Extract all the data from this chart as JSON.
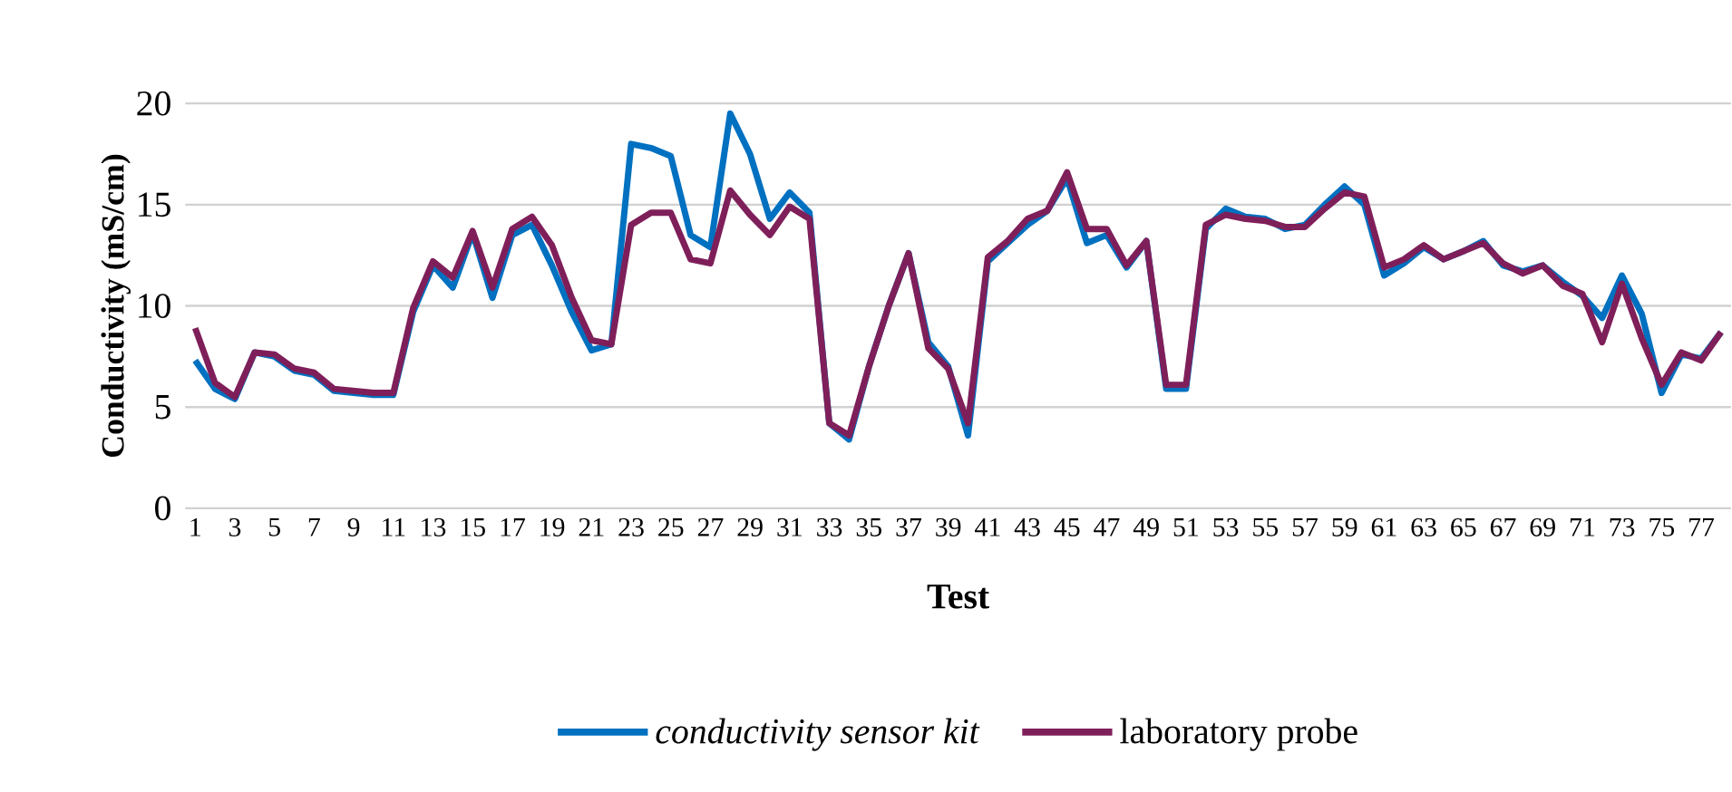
{
  "chart_data": {
    "type": "line",
    "xlabel": "Test",
    "ylabel": "Conductivity (mS/cm)",
    "categories": [
      "1",
      null,
      "3",
      null,
      "5",
      null,
      "7",
      null,
      "9",
      null,
      "11",
      null,
      "13",
      null,
      "15",
      null,
      "17",
      null,
      "19",
      null,
      "21",
      null,
      "23",
      null,
      "25",
      null,
      "27",
      null,
      "29",
      null,
      "31",
      null,
      "33",
      null,
      "35",
      null,
      "37",
      null,
      "39",
      null,
      "41",
      null,
      "43",
      null,
      "45",
      null,
      "47",
      null,
      "49",
      null,
      "51",
      null,
      "53",
      null,
      "55",
      null,
      "57",
      null,
      "59",
      null,
      "61",
      null,
      "63",
      null,
      "65",
      null,
      "67",
      null,
      "69",
      null,
      "71",
      null,
      "73",
      null,
      "75",
      null,
      "77",
      null
    ],
    "series": [
      {
        "name": "conductivity sensor kit",
        "color": "#0070c0",
        "values": [
          7.3,
          5.9,
          5.4,
          7.7,
          7.5,
          6.8,
          6.6,
          5.8,
          5.7,
          5.6,
          5.6,
          9.7,
          12.0,
          10.9,
          13.6,
          10.4,
          13.5,
          14.0,
          12.0,
          9.7,
          7.8,
          8.1,
          18.0,
          17.8,
          17.4,
          13.5,
          12.9,
          19.5,
          17.5,
          14.3,
          15.6,
          14.6,
          4.2,
          3.4,
          7.0,
          10.0,
          12.6,
          8.2,
          7.0,
          3.6,
          12.2,
          13.1,
          14.0,
          14.7,
          16.3,
          13.1,
          13.5,
          11.9,
          13.2,
          5.9,
          5.9,
          13.8,
          14.8,
          14.4,
          14.3,
          13.8,
          14.0,
          15.0,
          15.9,
          15.0,
          11.5,
          12.1,
          12.9,
          12.3,
          12.7,
          13.2,
          12.0,
          11.7,
          12.0,
          11.2,
          10.5,
          9.4,
          11.5,
          9.6,
          5.7,
          7.6,
          7.4,
          8.7
        ]
      },
      {
        "name": "laboratory probe",
        "color": "#7f1f5a",
        "values": [
          8.9,
          6.2,
          5.5,
          7.7,
          7.6,
          6.9,
          6.7,
          5.9,
          5.8,
          5.7,
          5.7,
          9.9,
          12.2,
          11.4,
          13.7,
          10.9,
          13.8,
          14.4,
          13.0,
          10.4,
          8.3,
          8.1,
          14.0,
          14.6,
          14.6,
          12.3,
          12.1,
          15.7,
          14.5,
          13.5,
          14.9,
          14.3,
          4.2,
          3.6,
          7.0,
          10.0,
          12.6,
          7.9,
          6.9,
          4.2,
          12.4,
          13.2,
          14.3,
          14.7,
          16.6,
          13.8,
          13.8,
          12.0,
          13.2,
          6.1,
          6.1,
          14.0,
          14.5,
          14.3,
          14.2,
          13.9,
          13.9,
          14.8,
          15.6,
          15.4,
          11.9,
          12.3,
          13.0,
          12.3,
          12.7,
          13.1,
          12.1,
          11.6,
          12.0,
          11.0,
          10.6,
          8.2,
          11.1,
          8.4,
          6.1,
          7.7,
          7.3,
          8.7
        ]
      }
    ],
    "ylim": [
      0,
      20
    ],
    "yticks": [
      0,
      5,
      10,
      15,
      20
    ],
    "grid": "y",
    "legend": "bottom",
    "marker": "none",
    "line_style": "solid"
  }
}
